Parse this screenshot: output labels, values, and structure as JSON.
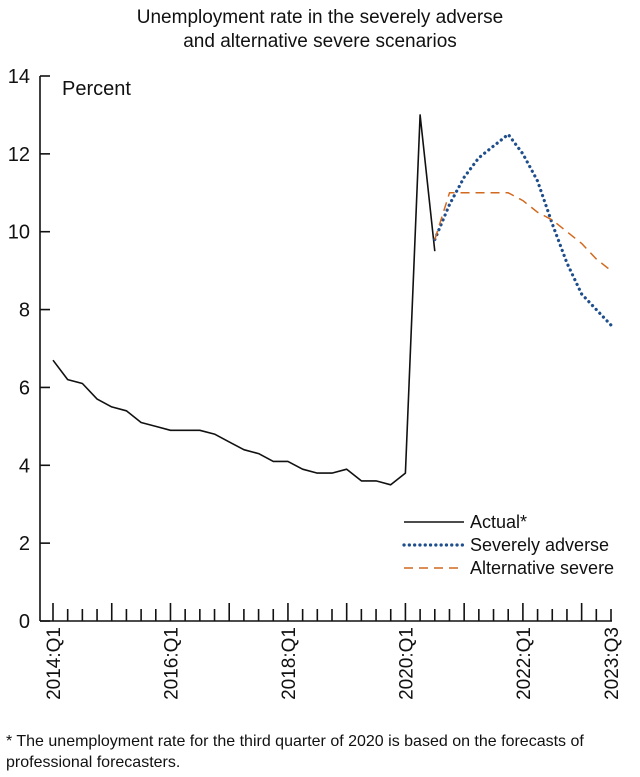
{
  "chart_data": {
    "type": "line",
    "title": [
      "Unemployment rate in the severely adverse",
      "and alternative severe scenarios"
    ],
    "ylabel": "Percent",
    "ylim": [
      0,
      14
    ],
    "yticks": [
      0,
      2,
      4,
      6,
      8,
      10,
      12,
      14
    ],
    "x_quarters": [
      "2014:Q1",
      "2014:Q2",
      "2014:Q3",
      "2014:Q4",
      "2015:Q1",
      "2015:Q2",
      "2015:Q3",
      "2015:Q4",
      "2016:Q1",
      "2016:Q2",
      "2016:Q3",
      "2016:Q4",
      "2017:Q1",
      "2017:Q2",
      "2017:Q3",
      "2017:Q4",
      "2018:Q1",
      "2018:Q2",
      "2018:Q3",
      "2018:Q4",
      "2019:Q1",
      "2019:Q2",
      "2019:Q3",
      "2019:Q4",
      "2020:Q1",
      "2020:Q2",
      "2020:Q3",
      "2020:Q4",
      "2021:Q1",
      "2021:Q2",
      "2021:Q3",
      "2021:Q4",
      "2022:Q1",
      "2022:Q2",
      "2022:Q3",
      "2022:Q4",
      "2023:Q1",
      "2023:Q2",
      "2023:Q3"
    ],
    "xtick_labels": [
      "2014:Q1",
      "2016:Q1",
      "2018:Q1",
      "2020:Q1",
      "2022:Q1",
      "2023:Q3"
    ],
    "series": [
      {
        "name": "Actual*",
        "color": "#111111",
        "style": "solid",
        "x": [
          "2014:Q1",
          "2014:Q2",
          "2014:Q3",
          "2014:Q4",
          "2015:Q1",
          "2015:Q2",
          "2015:Q3",
          "2015:Q4",
          "2016:Q1",
          "2016:Q2",
          "2016:Q3",
          "2016:Q4",
          "2017:Q1",
          "2017:Q2",
          "2017:Q3",
          "2017:Q4",
          "2018:Q1",
          "2018:Q2",
          "2018:Q3",
          "2018:Q4",
          "2019:Q1",
          "2019:Q2",
          "2019:Q3",
          "2019:Q4",
          "2020:Q1",
          "2020:Q2",
          "2020:Q3"
        ],
        "values": [
          6.7,
          6.2,
          6.1,
          5.7,
          5.5,
          5.4,
          5.1,
          5.0,
          4.9,
          4.9,
          4.9,
          4.8,
          4.6,
          4.4,
          4.3,
          4.1,
          4.1,
          3.9,
          3.8,
          3.8,
          3.9,
          3.6,
          3.6,
          3.5,
          3.8,
          13.0,
          9.5
        ]
      },
      {
        "name": "Severely adverse",
        "color": "#1f4e8c",
        "style": "dotted",
        "x": [
          "2020:Q3",
          "2020:Q4",
          "2021:Q1",
          "2021:Q2",
          "2021:Q3",
          "2021:Q4",
          "2022:Q1",
          "2022:Q2",
          "2022:Q3",
          "2022:Q4",
          "2023:Q1",
          "2023:Q2",
          "2023:Q3"
        ],
        "values": [
          9.8,
          10.7,
          11.4,
          11.9,
          12.2,
          12.5,
          12.0,
          11.3,
          10.2,
          9.2,
          8.4,
          8.0,
          7.6
        ]
      },
      {
        "name": "Alternative severe",
        "color": "#d2691e",
        "style": "dashed",
        "x": [
          "2020:Q3",
          "2020:Q4",
          "2021:Q1",
          "2021:Q2",
          "2021:Q3",
          "2021:Q4",
          "2022:Q1",
          "2022:Q2",
          "2022:Q3",
          "2022:Q4",
          "2023:Q1",
          "2023:Q2",
          "2023:Q3"
        ],
        "values": [
          9.8,
          11.0,
          11.0,
          11.0,
          11.0,
          11.0,
          10.8,
          10.5,
          10.3,
          10.0,
          9.7,
          9.3,
          9.0
        ]
      }
    ],
    "legend_position": "bottom-right",
    "grid": false
  },
  "footnote": "* The unemployment rate for the third quarter of 2020 is based on the forecasts of professional forecasters."
}
